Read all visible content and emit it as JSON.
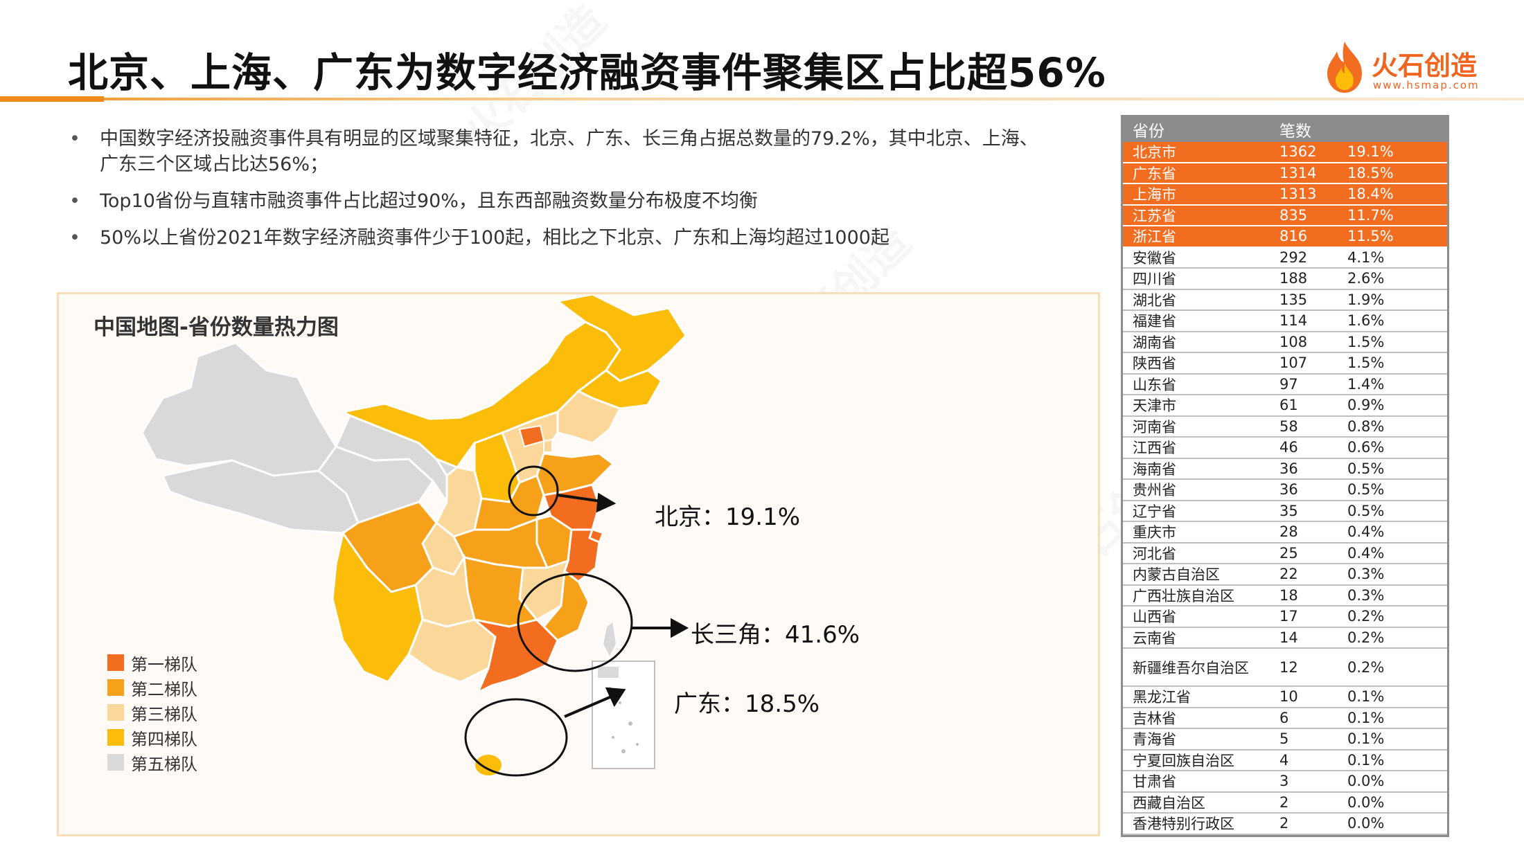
{
  "title": "北京、上海、广东为数字经济融资事件聚集区占比超56%",
  "logo": {
    "name": "火石创造",
    "url": "www.hsmap.com"
  },
  "bullets": [
    "中国数字经济投融资事件具有明显的区域聚集特征，北京、广东、长三角占据总数量的79.2%，其中北京、上海、广东三个区域占比达56%；",
    "Top10省份与直辖市融资事件占比超过90%，且东西部融资数量分布极度不均衡",
    "50%以上省份2021年数字经济融资事件少于100起，相比之下北京、广东和上海均超过1000起"
  ],
  "map": {
    "title": "中国地图-省份数量热力图",
    "legend": [
      {
        "label": "第一梯队",
        "color": "#f36d21"
      },
      {
        "label": "第二梯队",
        "color": "#f7a11a"
      },
      {
        "label": "第三梯队",
        "color": "#fcd79a"
      },
      {
        "label": "第四梯队",
        "color": "#fbbc0a"
      },
      {
        "label": "第五梯队",
        "color": "#d9d9d9"
      }
    ],
    "callouts": [
      {
        "label": "北京：19.1%"
      },
      {
        "label": "长三角：41.6%"
      },
      {
        "label": "广东：18.5%"
      }
    ]
  },
  "table": {
    "headers": [
      "省份",
      "笔数",
      ""
    ],
    "rows": [
      {
        "province": "北京市",
        "count": "1362",
        "pct": "19.1%",
        "top": true
      },
      {
        "province": "广东省",
        "count": "1314",
        "pct": "18.5%",
        "top": true
      },
      {
        "province": "上海市",
        "count": "1313",
        "pct": "18.4%",
        "top": true
      },
      {
        "province": "江苏省",
        "count": "835",
        "pct": "11.7%",
        "top": true
      },
      {
        "province": "浙江省",
        "count": "816",
        "pct": "11.5%",
        "top": true
      },
      {
        "province": "安徽省",
        "count": "292",
        "pct": "4.1%"
      },
      {
        "province": "四川省",
        "count": "188",
        "pct": "2.6%"
      },
      {
        "province": "湖北省",
        "count": "135",
        "pct": "1.9%"
      },
      {
        "province": "福建省",
        "count": "114",
        "pct": "1.6%"
      },
      {
        "province": "湖南省",
        "count": "108",
        "pct": "1.5%"
      },
      {
        "province": "陕西省",
        "count": "107",
        "pct": "1.5%"
      },
      {
        "province": "山东省",
        "count": "97",
        "pct": "1.4%"
      },
      {
        "province": "天津市",
        "count": "61",
        "pct": "0.9%"
      },
      {
        "province": "河南省",
        "count": "58",
        "pct": "0.8%"
      },
      {
        "province": "江西省",
        "count": "46",
        "pct": "0.6%"
      },
      {
        "province": "海南省",
        "count": "36",
        "pct": "0.5%"
      },
      {
        "province": "贵州省",
        "count": "36",
        "pct": "0.5%"
      },
      {
        "province": "辽宁省",
        "count": "35",
        "pct": "0.5%"
      },
      {
        "province": "重庆市",
        "count": "28",
        "pct": "0.4%"
      },
      {
        "province": "河北省",
        "count": "25",
        "pct": "0.4%"
      },
      {
        "province": "内蒙古自治区",
        "count": "22",
        "pct": "0.3%"
      },
      {
        "province": "广西壮族自治区",
        "count": "18",
        "pct": "0.3%"
      },
      {
        "province": "山西省",
        "count": "17",
        "pct": "0.2%"
      },
      {
        "province": "云南省",
        "count": "14",
        "pct": "0.2%"
      },
      {
        "province": "新疆维吾尔自治区",
        "count": "12",
        "pct": "0.2%",
        "tall": true
      },
      {
        "province": "黑龙江省",
        "count": "10",
        "pct": "0.1%"
      },
      {
        "province": "吉林省",
        "count": "6",
        "pct": "0.1%"
      },
      {
        "province": "青海省",
        "count": "5",
        "pct": "0.1%"
      },
      {
        "province": "宁夏回族自治区",
        "count": "4",
        "pct": "0.1%"
      },
      {
        "province": "甘肃省",
        "count": "3",
        "pct": "0.0%"
      },
      {
        "province": "西藏自治区",
        "count": "2",
        "pct": "0.0%"
      },
      {
        "province": "香港特别行政区",
        "count": "2",
        "pct": "0.0%"
      }
    ]
  }
}
